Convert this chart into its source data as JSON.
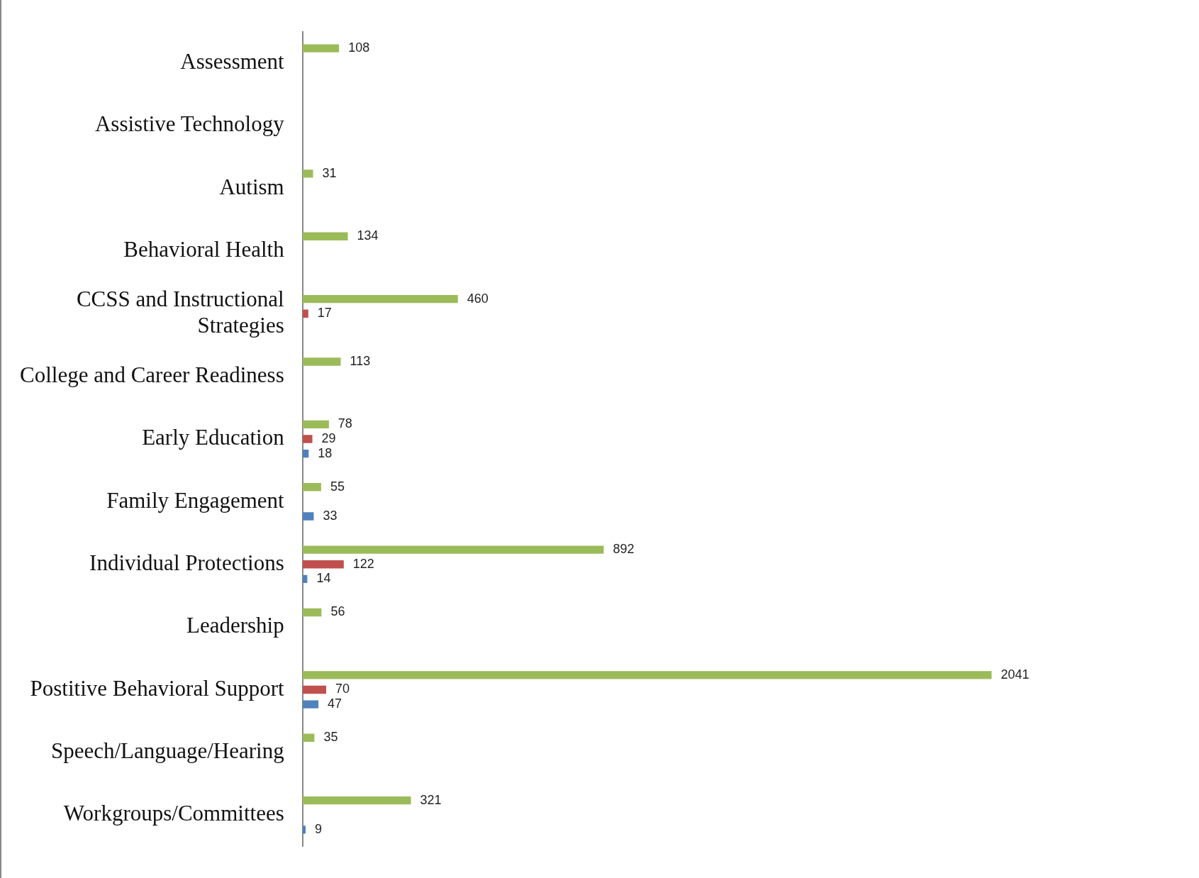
{
  "chart_data": {
    "type": "bar",
    "orientation": "horizontal",
    "categories": [
      "Assessment",
      "Assistive Technology",
      "Autism",
      "Behavioral Health",
      "CCSS and Instructional Strategies",
      "College and Career Readiness",
      "Early Education",
      "Family Engagement",
      "Individual Protections",
      "Leadership",
      "Postitive Behavioral Support",
      "Speech/Language/Hearing",
      "Workgroups/Committees"
    ],
    "series": [
      {
        "color": "#9bbb59",
        "values": [
          108,
          null,
          31,
          134,
          460,
          113,
          78,
          55,
          892,
          56,
          2041,
          35,
          321
        ]
      },
      {
        "color": "#c0504d",
        "values": [
          null,
          null,
          null,
          null,
          17,
          null,
          29,
          null,
          122,
          null,
          70,
          null,
          null
        ]
      },
      {
        "color": "#4f81bd",
        "values": [
          null,
          null,
          null,
          null,
          null,
          null,
          18,
          33,
          14,
          null,
          47,
          null,
          9
        ]
      }
    ],
    "data_labels": true,
    "grid": false
  }
}
